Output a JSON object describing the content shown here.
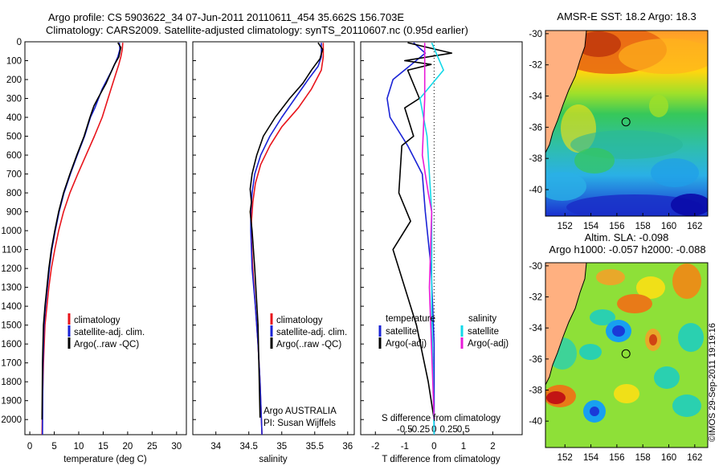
{
  "header": {
    "line1": "Argo profile: CS 5903622_34 07-Jun-2011 20110611_454 35.662S 156.703E",
    "line2": "Climatology: CARS2009. Satellite-adjusted climatology: synTS_20110607.nc (0.95d earlier)"
  },
  "colors": {
    "climatology": "#e8141b",
    "satellite": "#1a23d6",
    "argo": "#000000",
    "s_satellite": "#12d8e8",
    "s_argo": "#e81ad8"
  },
  "depth_axis": {
    "ticks": [
      "0",
      "100",
      "200",
      "300",
      "400",
      "500",
      "600",
      "700",
      "800",
      "900",
      "1000",
      "1100",
      "1200",
      "1300",
      "1400",
      "1500",
      "1600",
      "1700",
      "1800",
      "1900",
      "2000"
    ],
    "range": [
      0,
      2080
    ]
  },
  "chart_data": [
    {
      "id": "temperature",
      "type": "line",
      "xlabel": "temperature (deg C)",
      "xlim": [
        -1,
        32
      ],
      "xticks": [
        "0",
        "5",
        "10",
        "15",
        "20",
        "25",
        "30"
      ],
      "legend": [
        "climatology",
        "satellite-adj. clim.",
        "Argo(..raw -QC)"
      ],
      "series": [
        {
          "name": "climatology",
          "x": [
            19.0,
            18.9,
            18.6,
            18.2,
            17.2,
            16.0,
            14.8,
            13.2,
            11.5,
            9.8,
            8.2,
            6.9,
            5.9,
            5.1,
            4.4,
            3.9,
            3.5,
            3.1,
            2.8,
            2.6,
            2.5
          ],
          "depth": [
            5,
            40,
            80,
            120,
            200,
            300,
            400,
            500,
            600,
            700,
            800,
            900,
            1000,
            1100,
            1200,
            1300,
            1400,
            1500,
            1700,
            1900,
            2080
          ]
        },
        {
          "name": "satellite-adj. clim.",
          "x": [
            18.3,
            18.4,
            18.0,
            16.8,
            14.8,
            13.3,
            12.4,
            11.2,
            9.7,
            8.3,
            7.0,
            6.0,
            5.2,
            4.5,
            4.0,
            3.6,
            3.2,
            2.9,
            2.7,
            2.6
          ],
          "depth": [
            5,
            40,
            80,
            150,
            250,
            350,
            400,
            500,
            600,
            700,
            800,
            900,
            1000,
            1100,
            1200,
            1300,
            1400,
            1500,
            1700,
            2080
          ]
        },
        {
          "name": "Argo(..raw -QC)",
          "x": [
            18.0,
            18.6,
            18.2,
            17.3,
            15.6,
            13.9,
            13.1,
            12.3,
            11.1,
            9.6,
            8.2,
            6.9,
            5.9,
            5.1,
            4.4,
            3.9,
            3.5,
            3.1,
            2.8,
            2.6,
            2.5
          ],
          "depth": [
            5,
            30,
            80,
            120,
            220,
            300,
            340,
            400,
            500,
            600,
            700,
            800,
            900,
            1000,
            1100,
            1200,
            1300,
            1400,
            1500,
            1700,
            2000
          ]
        }
      ]
    },
    {
      "id": "salinity",
      "type": "line",
      "xlabel": "salinity",
      "xlim": [
        33.65,
        36.1
      ],
      "xticks": [
        "34",
        "34.5",
        "35",
        "35.5",
        "36"
      ],
      "legend": [
        "climatology",
        "satellite-adj. clim.",
        "Argo(..raw -QC)"
      ],
      "annotation": [
        "Argo AUSTRALIA",
        "PI: Susan Wijffels"
      ],
      "series": [
        {
          "name": "climatology",
          "x": [
            35.63,
            35.63,
            35.6,
            35.45,
            35.25,
            35.0,
            34.82,
            34.68,
            34.6,
            34.56,
            34.54,
            34.54,
            34.56,
            34.6,
            34.64,
            34.67,
            34.7
          ],
          "depth": [
            5,
            80,
            150,
            250,
            350,
            450,
            550,
            650,
            750,
            850,
            950,
            1050,
            1200,
            1400,
            1600,
            1800,
            2080
          ]
        },
        {
          "name": "satellite-adj. clim.",
          "x": [
            35.6,
            35.6,
            35.55,
            35.4,
            35.2,
            35.0,
            34.82,
            34.68,
            34.59,
            34.55,
            34.53,
            34.53,
            34.55,
            34.6,
            34.64,
            34.67,
            34.7
          ],
          "depth": [
            5,
            80,
            130,
            200,
            300,
            400,
            500,
            600,
            700,
            800,
            900,
            1000,
            1200,
            1400,
            1600,
            1800,
            2080
          ]
        },
        {
          "name": "Argo(..raw -QC)",
          "x": [
            35.55,
            35.62,
            35.58,
            35.45,
            35.32,
            35.12,
            34.9,
            34.72,
            34.62,
            34.55,
            34.52,
            34.54,
            34.52,
            34.55,
            34.59,
            34.64,
            34.67
          ],
          "depth": [
            5,
            40,
            90,
            150,
            220,
            300,
            400,
            500,
            600,
            700,
            780,
            850,
            900,
            1000,
            1200,
            1500,
            1990
          ]
        }
      ]
    },
    {
      "id": "differences",
      "type": "line",
      "xlabel": "T difference from climatology",
      "xlim": [
        -2.5,
        3.0
      ],
      "xticks": [
        "-2",
        "-1",
        "0",
        "1",
        "2"
      ],
      "s_axis_label": "S difference from climatology",
      "s_ticks": [
        "-0.5",
        "-0.25",
        "0",
        "0.25",
        "0.5"
      ],
      "legend_headers": [
        "temperature",
        "salinity"
      ],
      "legend": [
        "satellite",
        "Argo(-adj)",
        "satellite",
        "Argo(-adj)"
      ],
      "series": [
        {
          "name": "T satellite",
          "x": [
            -0.7,
            -0.3,
            -1.4,
            -1.6,
            -1.5,
            -0.9,
            -0.4,
            -0.3,
            -0.1,
            0.0,
            0.0
          ],
          "depth": [
            5,
            60,
            200,
            300,
            400,
            550,
            700,
            900,
            1200,
            1600,
            2080
          ]
        },
        {
          "name": "T Argo(-adj)",
          "x": [
            -0.9,
            0.6,
            -1.0,
            -0.1,
            -0.9,
            -0.5,
            -1.0,
            -0.7,
            -1.1,
            -1.2,
            -0.8,
            -1.4,
            -0.6,
            -0.2,
            0.0
          ],
          "depth": [
            5,
            60,
            100,
            120,
            150,
            300,
            350,
            500,
            550,
            800,
            950,
            1100,
            1500,
            1800,
            2000
          ]
        },
        {
          "name": "S satellite",
          "x": [
            -0.02,
            0.08,
            -0.12,
            -0.06,
            -0.02,
            -0.02,
            0.0
          ],
          "depth": [
            5,
            150,
            300,
            500,
            900,
            1400,
            2080
          ]
        },
        {
          "name": "S Argo(-adj)",
          "x": [
            -0.08,
            -0.08,
            -0.1,
            -0.05,
            -0.02,
            -0.04,
            0.0
          ],
          "depth": [
            5,
            300,
            600,
            800,
            900,
            1300,
            2000
          ]
        }
      ]
    }
  ],
  "maps": [
    {
      "title": "AMSR-E SST: 18.2  Argo: 18.3",
      "yticks": [
        "-30",
        "-32",
        "-34",
        "-36",
        "-38",
        "-40"
      ],
      "xticks": [
        "152",
        "154",
        "156",
        "158",
        "160",
        "162"
      ],
      "argo_lon": 156.7,
      "argo_lat": -35.66
    },
    {
      "title_line1": "Altim. SLA: -0.098",
      "title_line2": "Argo h1000: -0.057  h2000: -0.088",
      "yticks": [
        "-30",
        "-32",
        "-34",
        "-36",
        "-38",
        "-40"
      ],
      "xticks": [
        "152",
        "154",
        "156",
        "158",
        "160",
        "162"
      ],
      "argo_lon": 156.7,
      "argo_lat": -35.66
    }
  ],
  "footer": {
    "credit": "©IMOS 29-Sep-2011 19:19:16"
  }
}
